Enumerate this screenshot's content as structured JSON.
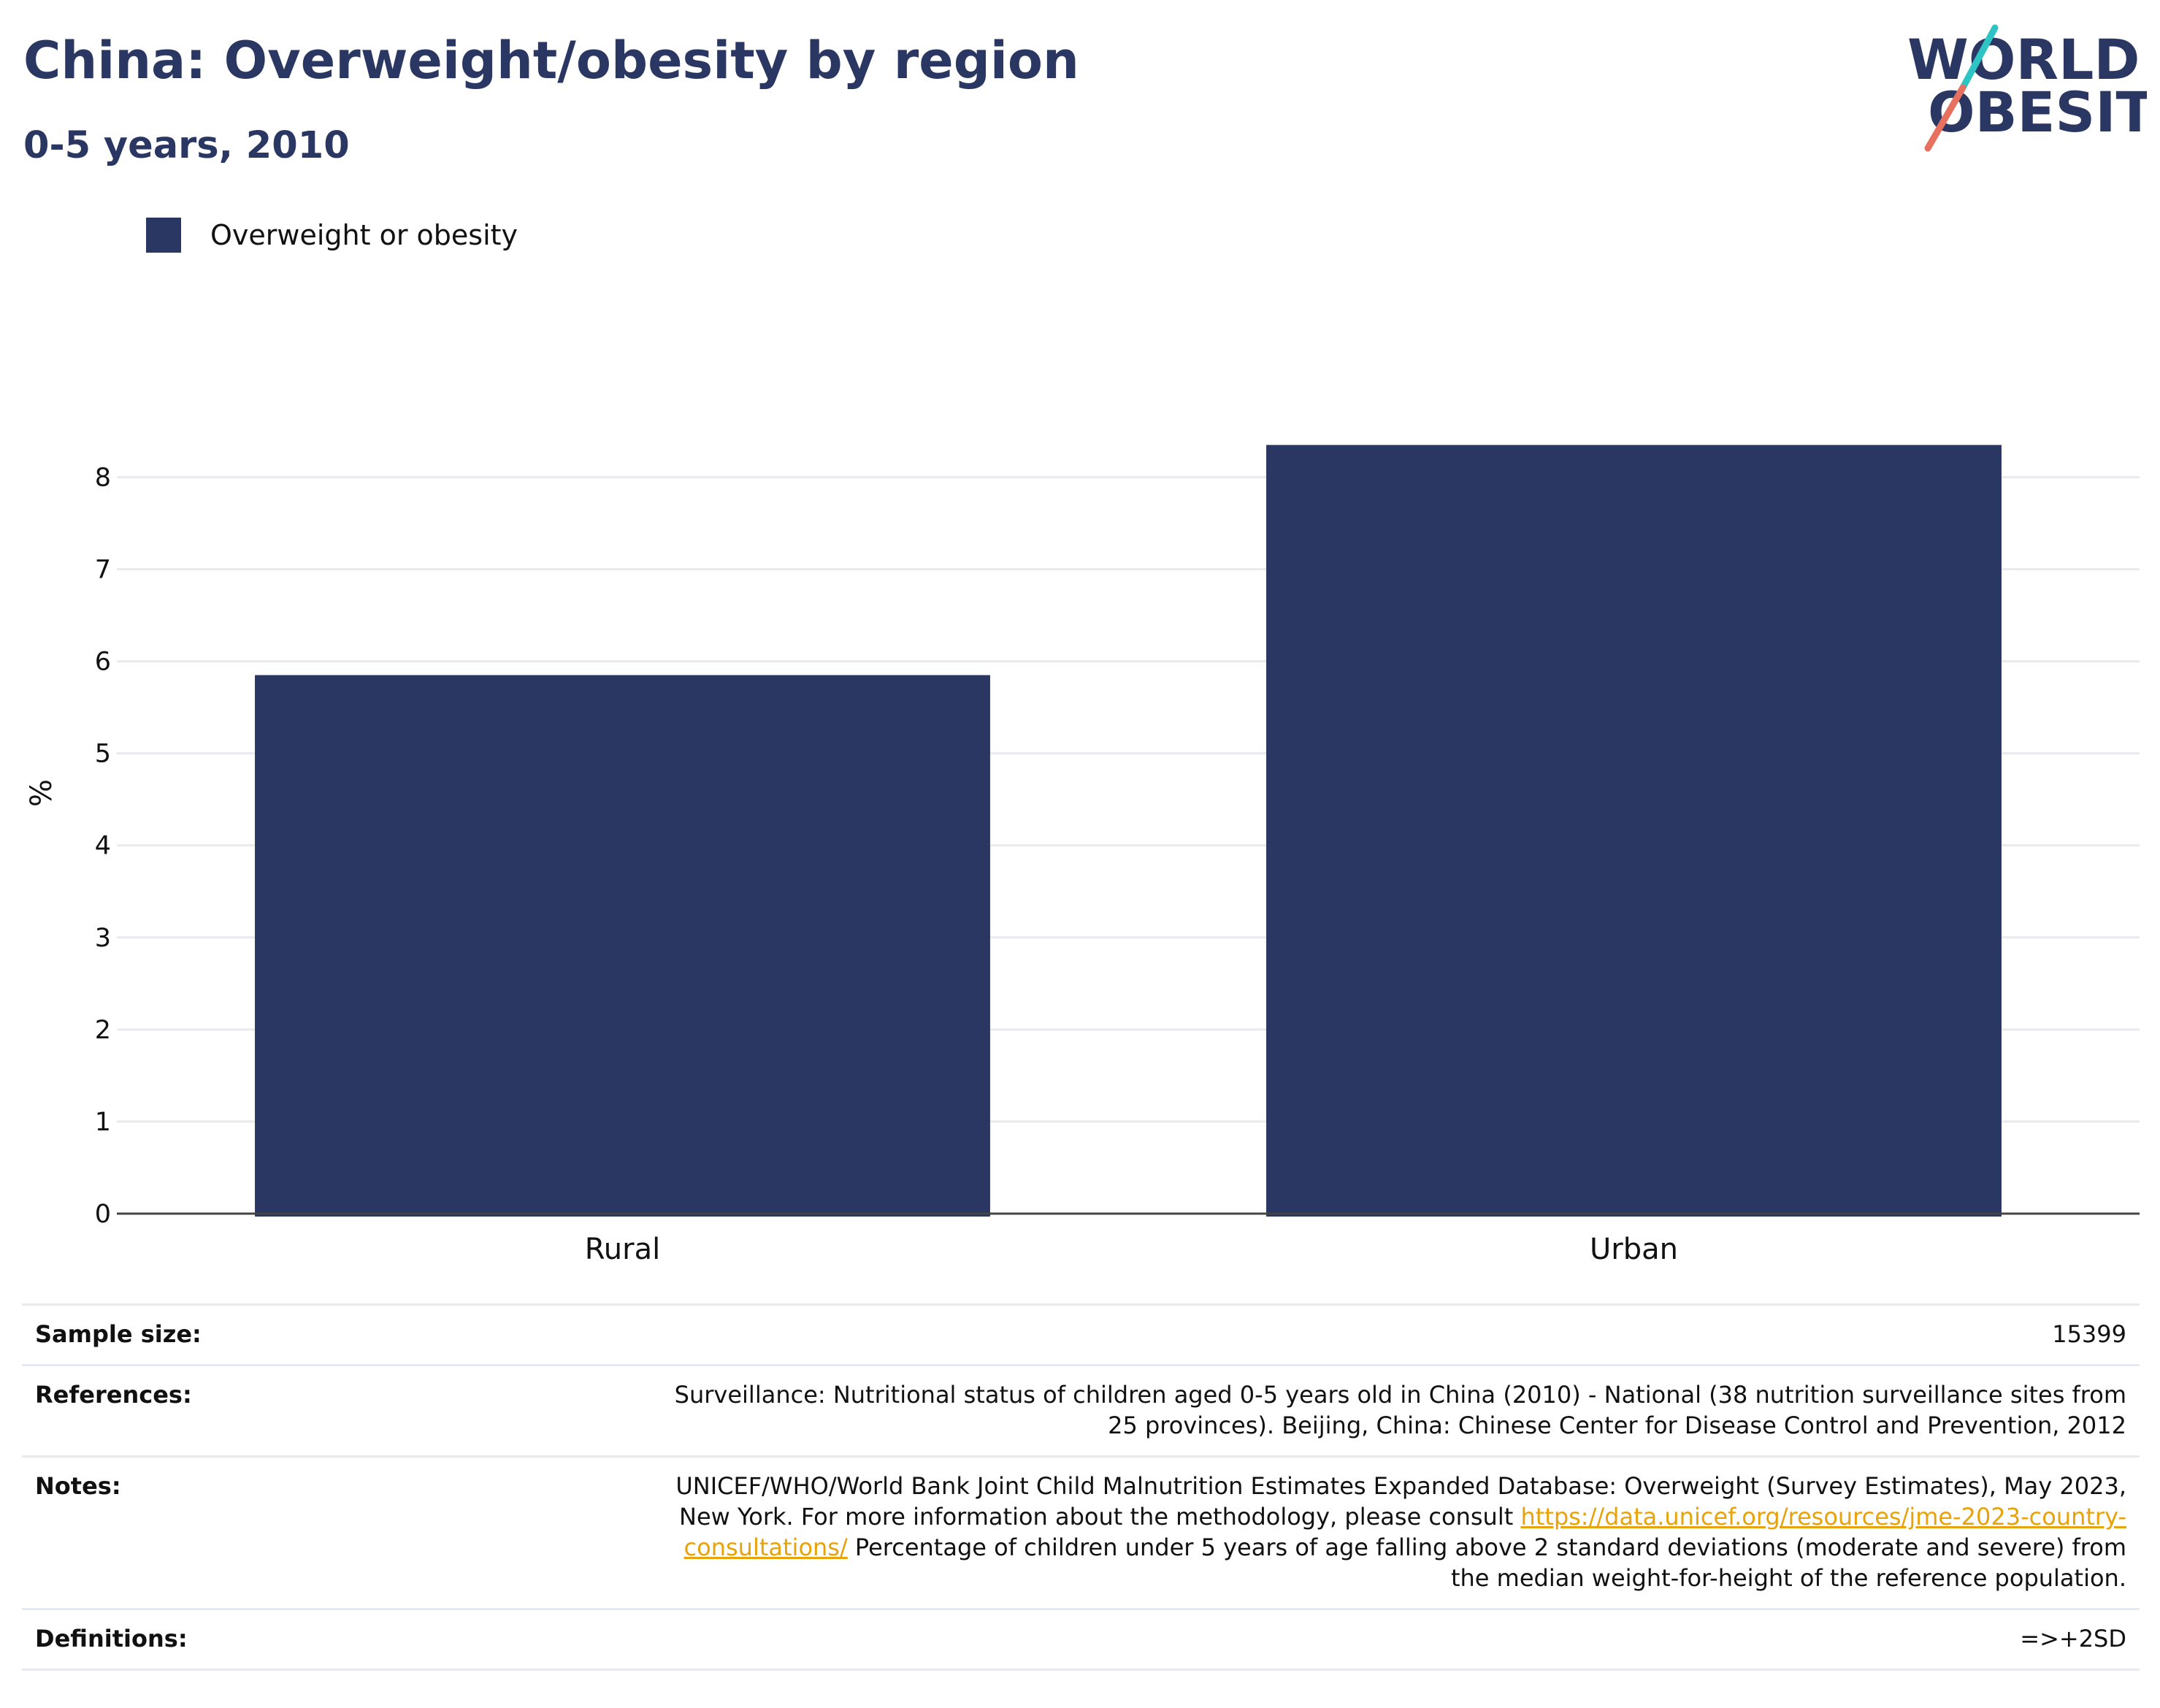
{
  "header": {
    "title": "China: Overweight/obesity by region",
    "subtitle": "0-5 years, 2010"
  },
  "logo": {
    "line1": "WORLD",
    "line2": "OBESITY",
    "colors": {
      "text": "#2a3763",
      "slash_top": "#2ec4c4",
      "slash_bottom": "#e8705e"
    }
  },
  "legend": {
    "items": [
      {
        "label": "Overweight or obesity",
        "color": "#2a3763"
      }
    ]
  },
  "chart_data": {
    "type": "bar",
    "title": "China: Overweight/obesity by region",
    "subtitle": "0-5 years, 2010",
    "ylabel": "%",
    "xlabel": "",
    "categories": [
      "Rural",
      "Urban"
    ],
    "series": [
      {
        "name": "Overweight or obesity",
        "values": [
          5.85,
          8.35
        ],
        "color": "#2a3763"
      }
    ],
    "ylim": [
      0,
      8.9
    ],
    "yticks": [
      0,
      1,
      2,
      3,
      4,
      5,
      6,
      7,
      8
    ],
    "grid": true,
    "legend_position": "top-left"
  },
  "info": {
    "sample_size": {
      "label": "Sample size:",
      "value": "15399"
    },
    "references": {
      "label": "References:",
      "value": "Surveillance: Nutritional status of children aged 0-5 years old in China (2010) - National (38 nutrition surveillance sites from 25 provinces). Beijing, China: Chinese Center for Disease Control and Prevention, 2012"
    },
    "notes": {
      "label": "Notes:",
      "text_before": "UNICEF/WHO/World Bank Joint Child Malnutrition Estimates Expanded Database: Overweight (Survey Estimates), May 2023, New York. For more information about the methodology, please consult",
      "link": "https://data.unicef.org/resources/jme-2023-country-consultations/",
      "text_after": "Percentage of children under 5 years of age falling above 2 standard deviations (moderate and severe) from the median weight-for-height of the reference population."
    },
    "definitions": {
      "label": "Definitions:",
      "value": "=>+2SD"
    }
  }
}
